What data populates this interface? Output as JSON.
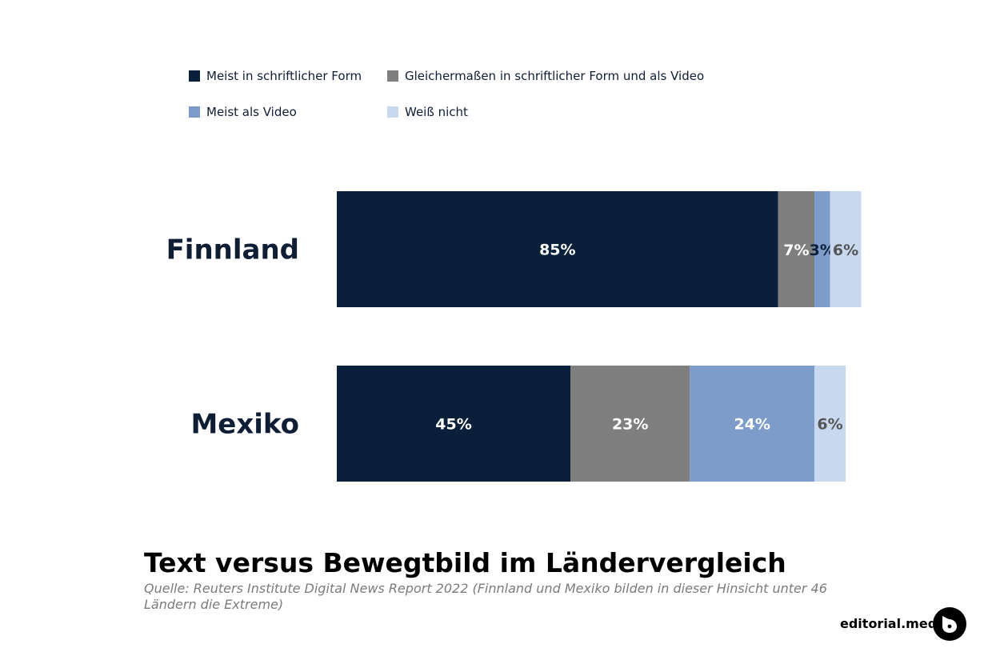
{
  "legend": [
    {
      "label": "Meist in schriftlicher Form",
      "color": "#0a1f3a"
    },
    {
      "label": "Gleichermaßen in schriftlicher Form und als Video",
      "color": "#7f7f7f"
    },
    {
      "label": "Meist als Video",
      "color": "#7e9cc9"
    },
    {
      "label": "Weiß nicht",
      "color": "#c8d8ef"
    }
  ],
  "chart_data": {
    "type": "bar",
    "orientation": "horizontal",
    "stacked": true,
    "categories": [
      "Finnland",
      "Mexiko"
    ],
    "series": [
      {
        "name": "Meist in schriftlicher Form",
        "values": [
          85,
          45
        ],
        "color": "#0a1f3a"
      },
      {
        "name": "Gleichermaßen in schriftlicher Form und als Video",
        "values": [
          7,
          23
        ],
        "color": "#7f7f7f"
      },
      {
        "name": "Meist als Video",
        "values": [
          3,
          24
        ],
        "color": "#7e9cc9"
      },
      {
        "name": "Weiß nicht",
        "values": [
          6,
          6
        ],
        "color": "#c8d8ef"
      }
    ],
    "value_labels": [
      [
        "85%",
        "7%",
        "3%",
        "6%"
      ],
      [
        "45%",
        "23%",
        "24%",
        "6%"
      ]
    ],
    "label_colors": [
      [
        "#ffffff",
        "#ffffff",
        "#0a1f3a",
        "#555555"
      ],
      [
        "#ffffff",
        "#ffffff",
        "#ffffff",
        "#555555"
      ]
    ],
    "xlim": [
      0,
      100
    ],
    "grid": false,
    "legend_position": "top-left"
  },
  "title": "Text versus Bewegtbild im Ländervergleich",
  "source": "Quelle: Reuters Institute Digital News Report 2022 (Finnland und Mexiko bilden in dieser Hinsicht unter 46 Ländern die Extreme)",
  "brand": "editorial.media"
}
